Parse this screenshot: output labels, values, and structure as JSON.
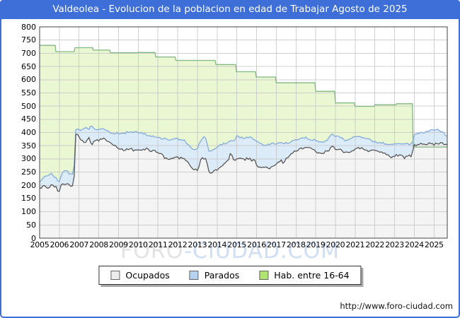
{
  "title_bar": {
    "text": "Valdeolea - Evolucion de la poblacion en edad de Trabajar Agosto de 2025"
  },
  "watermark": {
    "part1": "FORO",
    "part2": "-CIUDAD.COM"
  },
  "footer": {
    "url": "http://www.foro-ciudad.com"
  },
  "colors": {
    "accent_blue": "#3e6ed7",
    "grid": "#c8c8c8",
    "plot_border": "#444444",
    "plot_background": "#ffffff"
  },
  "legend": {
    "items": [
      {
        "label": "Ocupados",
        "color": "#ececec"
      },
      {
        "label": "Parados",
        "color": "#b7d2ee"
      },
      {
        "label": "Hab. entre 16-64",
        "color": "#b0e470"
      }
    ]
  },
  "chart_data": {
    "type": "area",
    "title": "Valdeolea - Evolucion de la poblacion en edad de Trabajar Agosto de 2025",
    "xlabel": "",
    "ylabel": "",
    "x_range": [
      2005,
      2025.67
    ],
    "y_range": [
      0,
      800
    ],
    "y_ticks": [
      0,
      50,
      100,
      150,
      200,
      250,
      300,
      350,
      400,
      450,
      500,
      550,
      600,
      650,
      700,
      750,
      800
    ],
    "x_ticks": [
      2005,
      2006,
      2007,
      2008,
      2009,
      2010,
      2011,
      2012,
      2013,
      2014,
      2015,
      2016,
      2017,
      2018,
      2019,
      2020,
      2021,
      2022,
      2023,
      2024,
      2025
    ],
    "grid": true,
    "legend_position": "bottom",
    "series": [
      {
        "name": "Hab. entre 16-64",
        "mode": "steps",
        "fill": "#e9f7d3",
        "line": "#80b780",
        "points": [
          [
            2005.0,
            730
          ],
          [
            2005.79,
            730
          ],
          [
            2005.82,
            706
          ],
          [
            2006.75,
            706
          ],
          [
            2006.79,
            721
          ],
          [
            2007.68,
            721
          ],
          [
            2007.72,
            712
          ],
          [
            2008.55,
            712
          ],
          [
            2008.59,
            702
          ],
          [
            2009.96,
            702
          ],
          [
            2010.0,
            703
          ],
          [
            2010.85,
            703
          ],
          [
            2010.89,
            686
          ],
          [
            2011.87,
            686
          ],
          [
            2011.91,
            673
          ],
          [
            2013.9,
            673
          ],
          [
            2013.94,
            657
          ],
          [
            2014.94,
            657
          ],
          [
            2014.98,
            630
          ],
          [
            2015.94,
            630
          ],
          [
            2015.98,
            610
          ],
          [
            2016.96,
            610
          ],
          [
            2017.0,
            588
          ],
          [
            2018.96,
            588
          ],
          [
            2019.0,
            556
          ],
          [
            2019.96,
            556
          ],
          [
            2020.0,
            512
          ],
          [
            2020.96,
            512
          ],
          [
            2021.0,
            499
          ],
          [
            2021.96,
            499
          ],
          [
            2022.0,
            505
          ],
          [
            2023.06,
            505
          ],
          [
            2023.1,
            509
          ],
          [
            2023.9,
            509
          ],
          [
            2023.94,
            345
          ],
          [
            2025.67,
            345
          ]
        ]
      },
      {
        "name": "Parados",
        "note": "valores leidos como tope de la banda apilada (Ocupados+Parados)",
        "mode": "jagged",
        "jitter": 4,
        "seed": 13,
        "fill": "#dcebf8",
        "line": "#84abdb",
        "points": [
          [
            2005.0,
            213
          ],
          [
            2005.2,
            235
          ],
          [
            2005.4,
            238
          ],
          [
            2005.6,
            242
          ],
          [
            2005.8,
            230
          ],
          [
            2005.98,
            212
          ],
          [
            2006.1,
            240
          ],
          [
            2006.3,
            258
          ],
          [
            2006.5,
            245
          ],
          [
            2006.74,
            240
          ],
          [
            2006.79,
            408
          ],
          [
            2006.9,
            415
          ],
          [
            2007.1,
            408
          ],
          [
            2007.3,
            418
          ],
          [
            2007.5,
            412
          ],
          [
            2007.62,
            427
          ],
          [
            2007.8,
            415
          ],
          [
            2008.0,
            410
          ],
          [
            2008.2,
            412
          ],
          [
            2008.5,
            402
          ],
          [
            2008.8,
            398
          ],
          [
            2009.0,
            397
          ],
          [
            2009.3,
            398
          ],
          [
            2009.6,
            402
          ],
          [
            2010.0,
            400
          ],
          [
            2010.4,
            392
          ],
          [
            2010.8,
            385
          ],
          [
            2011.2,
            378
          ],
          [
            2011.5,
            372
          ],
          [
            2011.8,
            374
          ],
          [
            2012.0,
            375
          ],
          [
            2012.3,
            372
          ],
          [
            2012.6,
            350
          ],
          [
            2012.8,
            336
          ],
          [
            2013.0,
            340
          ],
          [
            2013.2,
            378
          ],
          [
            2013.4,
            382
          ],
          [
            2013.6,
            328
          ],
          [
            2013.8,
            338
          ],
          [
            2014.0,
            345
          ],
          [
            2014.3,
            358
          ],
          [
            2014.55,
            362
          ],
          [
            2014.7,
            370
          ],
          [
            2014.85,
            366
          ],
          [
            2015.0,
            385
          ],
          [
            2015.3,
            380
          ],
          [
            2015.6,
            384
          ],
          [
            2015.9,
            375
          ],
          [
            2016.1,
            362
          ],
          [
            2016.4,
            352
          ],
          [
            2016.7,
            356
          ],
          [
            2017.0,
            360
          ],
          [
            2017.2,
            362
          ],
          [
            2017.35,
            358
          ],
          [
            2017.6,
            360
          ],
          [
            2017.8,
            366
          ],
          [
            2018.0,
            372
          ],
          [
            2018.3,
            376
          ],
          [
            2018.5,
            380
          ],
          [
            2018.8,
            374
          ],
          [
            2019.0,
            370
          ],
          [
            2019.3,
            362
          ],
          [
            2019.6,
            375
          ],
          [
            2019.8,
            392
          ],
          [
            2020.0,
            388
          ],
          [
            2020.3,
            383
          ],
          [
            2020.5,
            372
          ],
          [
            2020.8,
            378
          ],
          [
            2021.0,
            385
          ],
          [
            2021.3,
            382
          ],
          [
            2021.6,
            375
          ],
          [
            2022.0,
            365
          ],
          [
            2022.3,
            362
          ],
          [
            2022.6,
            358
          ],
          [
            2022.8,
            352
          ],
          [
            2023.0,
            356
          ],
          [
            2023.3,
            358
          ],
          [
            2023.5,
            353
          ],
          [
            2023.7,
            356
          ],
          [
            2023.9,
            355
          ],
          [
            2023.96,
            392
          ],
          [
            2024.2,
            396
          ],
          [
            2024.4,
            403
          ],
          [
            2024.6,
            400
          ],
          [
            2024.8,
            410
          ],
          [
            2025.0,
            405
          ],
          [
            2025.2,
            414
          ],
          [
            2025.4,
            400
          ],
          [
            2025.67,
            388
          ]
        ]
      },
      {
        "name": "Ocupados",
        "mode": "jagged",
        "jitter": 5,
        "seed": 7,
        "fill": "#f4f4f4",
        "line": "#585858",
        "points": [
          [
            2005.0,
            190
          ],
          [
            2005.2,
            198
          ],
          [
            2005.4,
            193
          ],
          [
            2005.6,
            200
          ],
          [
            2005.8,
            196
          ],
          [
            2005.98,
            176
          ],
          [
            2006.1,
            200
          ],
          [
            2006.3,
            207
          ],
          [
            2006.5,
            198
          ],
          [
            2006.74,
            197
          ],
          [
            2006.79,
            385
          ],
          [
            2006.9,
            393
          ],
          [
            2007.1,
            370
          ],
          [
            2007.3,
            362
          ],
          [
            2007.5,
            380
          ],
          [
            2007.62,
            352
          ],
          [
            2007.8,
            372
          ],
          [
            2008.0,
            370
          ],
          [
            2008.2,
            380
          ],
          [
            2008.5,
            368
          ],
          [
            2008.8,
            350
          ],
          [
            2009.0,
            340
          ],
          [
            2009.3,
            334
          ],
          [
            2009.6,
            336
          ],
          [
            2010.0,
            333
          ],
          [
            2010.4,
            338
          ],
          [
            2010.8,
            330
          ],
          [
            2011.2,
            315
          ],
          [
            2011.5,
            295
          ],
          [
            2011.8,
            302
          ],
          [
            2012.0,
            305
          ],
          [
            2012.3,
            300
          ],
          [
            2012.6,
            280
          ],
          [
            2012.8,
            262
          ],
          [
            2013.0,
            258
          ],
          [
            2013.2,
            300
          ],
          [
            2013.4,
            305
          ],
          [
            2013.6,
            248
          ],
          [
            2013.8,
            252
          ],
          [
            2014.0,
            262
          ],
          [
            2014.3,
            280
          ],
          [
            2014.55,
            291
          ],
          [
            2014.7,
            330
          ],
          [
            2014.85,
            295
          ],
          [
            2015.0,
            300
          ],
          [
            2015.3,
            298
          ],
          [
            2015.6,
            301
          ],
          [
            2015.9,
            292
          ],
          [
            2016.1,
            270
          ],
          [
            2016.4,
            266
          ],
          [
            2016.7,
            264
          ],
          [
            2017.0,
            280
          ],
          [
            2017.2,
            295
          ],
          [
            2017.35,
            287
          ],
          [
            2017.6,
            310
          ],
          [
            2017.8,
            318
          ],
          [
            2018.0,
            330
          ],
          [
            2018.3,
            340
          ],
          [
            2018.5,
            345
          ],
          [
            2018.8,
            336
          ],
          [
            2019.0,
            327
          ],
          [
            2019.3,
            318
          ],
          [
            2019.6,
            330
          ],
          [
            2019.8,
            345
          ],
          [
            2020.0,
            340
          ],
          [
            2020.3,
            335
          ],
          [
            2020.5,
            322
          ],
          [
            2020.8,
            330
          ],
          [
            2021.0,
            337
          ],
          [
            2021.3,
            340
          ],
          [
            2021.6,
            333
          ],
          [
            2022.0,
            328
          ],
          [
            2022.3,
            325
          ],
          [
            2022.6,
            318
          ],
          [
            2022.8,
            308
          ],
          [
            2023.0,
            312
          ],
          [
            2023.3,
            315
          ],
          [
            2023.5,
            306
          ],
          [
            2023.7,
            310
          ],
          [
            2023.9,
            315
          ],
          [
            2023.96,
            352
          ],
          [
            2024.2,
            355
          ],
          [
            2024.4,
            360
          ],
          [
            2024.6,
            357
          ],
          [
            2024.8,
            360
          ],
          [
            2025.0,
            355
          ],
          [
            2025.2,
            360
          ],
          [
            2025.4,
            357
          ],
          [
            2025.67,
            352
          ]
        ]
      }
    ]
  }
}
